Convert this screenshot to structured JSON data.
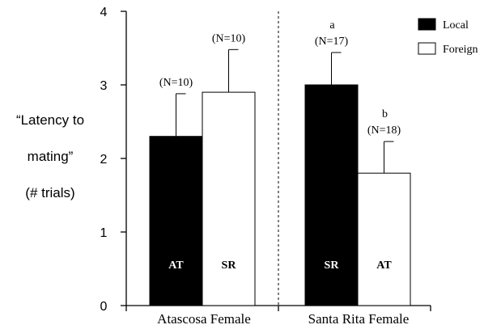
{
  "chart_data": {
    "type": "bar",
    "ylabel_lines": [
      "“Latency to",
      "mating”",
      "(# trials)"
    ],
    "ylim": [
      0,
      4
    ],
    "yticks": [
      0,
      1,
      2,
      3,
      4
    ],
    "grid": false,
    "legend_position": "top-right",
    "legend": [
      {
        "name": "Local",
        "color": "#000000"
      },
      {
        "name": "Foreign",
        "color": "#ffffff"
      }
    ],
    "groups": [
      {
        "label": "Atascosa Female",
        "bars": [
          {
            "series": "Local",
            "value": 2.3,
            "error": 0.58,
            "bar_label": "AT",
            "n_label": "(N=10)",
            "sig": ""
          },
          {
            "series": "Foreign",
            "value": 2.9,
            "error": 0.58,
            "bar_label": "SR",
            "n_label": "(N=10)",
            "sig": ""
          }
        ]
      },
      {
        "label": "Santa Rita Female",
        "bars": [
          {
            "series": "Local",
            "value": 3.0,
            "error": 0.44,
            "bar_label": "SR",
            "n_label": "(N=17)",
            "sig": "a"
          },
          {
            "series": "Foreign",
            "value": 1.8,
            "error": 0.43,
            "bar_label": "AT",
            "n_label": "(N=18)",
            "sig": "b"
          }
        ]
      }
    ]
  }
}
